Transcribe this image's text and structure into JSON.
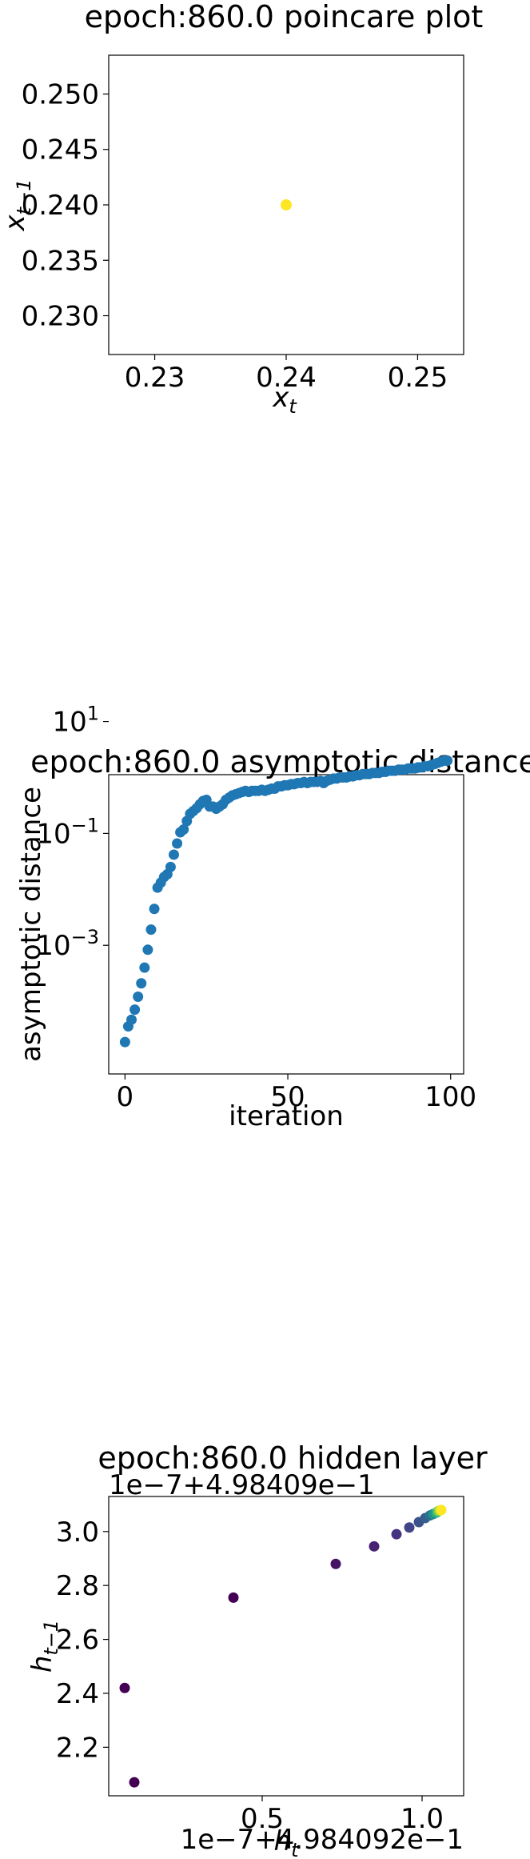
{
  "chart_data": [
    {
      "type": "scatter",
      "title": "epoch:860.0 poincare plot",
      "xlabel": "x",
      "xlabel_sub": "t",
      "ylabel": "x",
      "ylabel_sub": "t−1",
      "xlim": [
        0.2265,
        0.2535
      ],
      "ylim": [
        0.2265,
        0.2535
      ],
      "xticks": [
        0.23,
        0.24,
        0.25
      ],
      "xtick_labels": [
        "0.23",
        "0.24",
        "0.25"
      ],
      "yticks": [
        0.23,
        0.235,
        0.24,
        0.245,
        0.25
      ],
      "ytick_labels": [
        "0.230",
        "0.235",
        "0.240",
        "0.245",
        "0.250"
      ],
      "points": [
        {
          "x": 0.24,
          "y": 0.24,
          "color": "#fde725"
        }
      ]
    },
    {
      "type": "scatter",
      "title": "epoch:860.0 asymptotic distance",
      "xlabel": "iteration",
      "ylabel": "asymptotic distance",
      "yscale": "log",
      "xlim": [
        -5,
        104
      ],
      "ylim_log10": [
        -5.3,
        0.05
      ],
      "xticks": [
        0,
        50,
        100
      ],
      "xtick_labels": [
        "0",
        "50",
        "100"
      ],
      "yticks_log10": [
        1,
        -1,
        -3
      ],
      "ytick_base": "10",
      "ytick_exponents": [
        "1",
        "−1",
        "−3"
      ],
      "marker_color": "#1f77b4",
      "log10_values": [
        -4.73,
        -4.45,
        -4.33,
        -4.15,
        -3.92,
        -3.68,
        -3.4,
        -3.08,
        -2.72,
        -2.35,
        -1.97,
        -1.88,
        -1.78,
        -1.73,
        -1.6,
        -1.38,
        -1.18,
        -0.98,
        -0.93,
        -0.78,
        -0.65,
        -0.6,
        -0.55,
        -0.48,
        -0.42,
        -0.4,
        -0.52,
        -0.52,
        -0.56,
        -0.52,
        -0.48,
        -0.4,
        -0.36,
        -0.32,
        -0.3,
        -0.28,
        -0.26,
        -0.24,
        -0.26,
        -0.24,
        -0.24,
        -0.24,
        -0.22,
        -0.24,
        -0.22,
        -0.2,
        -0.2,
        -0.16,
        -0.16,
        -0.14,
        -0.14,
        -0.12,
        -0.12,
        -0.1,
        -0.1,
        -0.08,
        -0.1,
        -0.08,
        -0.08,
        -0.08,
        -0.06,
        -0.1,
        -0.06,
        -0.04,
        -0.02,
        -0.02,
        0.0,
        0.0,
        0.0,
        0.02,
        0.02,
        0.04,
        0.04,
        0.06,
        0.06,
        0.06,
        0.08,
        0.08,
        0.08,
        0.1,
        0.1,
        0.12,
        0.12,
        0.12,
        0.14,
        0.14,
        0.14,
        0.16,
        0.16,
        0.16,
        0.18,
        0.18,
        0.2,
        0.2,
        0.22,
        0.24,
        0.26,
        0.28,
        0.3,
        0.3
      ]
    },
    {
      "type": "scatter",
      "title": "epoch:860.0 hidden layer",
      "xlabel": "h",
      "xlabel_sub": "t",
      "ylabel": "h",
      "ylabel_sub": "t−1",
      "x_offset_text": "1e−7+4.984092e−1",
      "y_offset_text": "1e−7+4.98409e−1",
      "xlim": [
        0.02,
        1.13
      ],
      "ylim": [
        2.02,
        3.13
      ],
      "xticks": [
        0.5,
        1.0
      ],
      "xtick_labels": [
        "0.5",
        "1.0"
      ],
      "yticks": [
        2.2,
        2.4,
        2.6,
        2.8,
        3.0
      ],
      "ytick_labels": [
        "2.2",
        "2.4",
        "2.6",
        "2.8",
        "3.0"
      ],
      "points": [
        {
          "x": 0.1,
          "y": 2.07,
          "color": "#440154"
        },
        {
          "x": 0.07,
          "y": 2.42,
          "color": "#440154"
        },
        {
          "x": 0.41,
          "y": 2.755,
          "color": "#440154"
        },
        {
          "x": 0.73,
          "y": 2.88,
          "color": "#471365"
        },
        {
          "x": 0.85,
          "y": 2.945,
          "color": "#482374"
        },
        {
          "x": 0.92,
          "y": 2.99,
          "color": "#46337f"
        },
        {
          "x": 0.96,
          "y": 3.015,
          "color": "#414487"
        },
        {
          "x": 0.99,
          "y": 3.035,
          "color": "#3b528b"
        },
        {
          "x": 1.01,
          "y": 3.05,
          "color": "#355f8d"
        },
        {
          "x": 1.025,
          "y": 3.06,
          "color": "#2c728e"
        },
        {
          "x": 1.035,
          "y": 3.065,
          "color": "#21918c"
        },
        {
          "x": 1.045,
          "y": 3.07,
          "color": "#28ae80"
        },
        {
          "x": 1.05,
          "y": 3.075,
          "color": "#5ec962"
        },
        {
          "x": 1.055,
          "y": 3.078,
          "color": "#addc30"
        },
        {
          "x": 1.06,
          "y": 3.08,
          "color": "#fde725"
        }
      ]
    }
  ]
}
